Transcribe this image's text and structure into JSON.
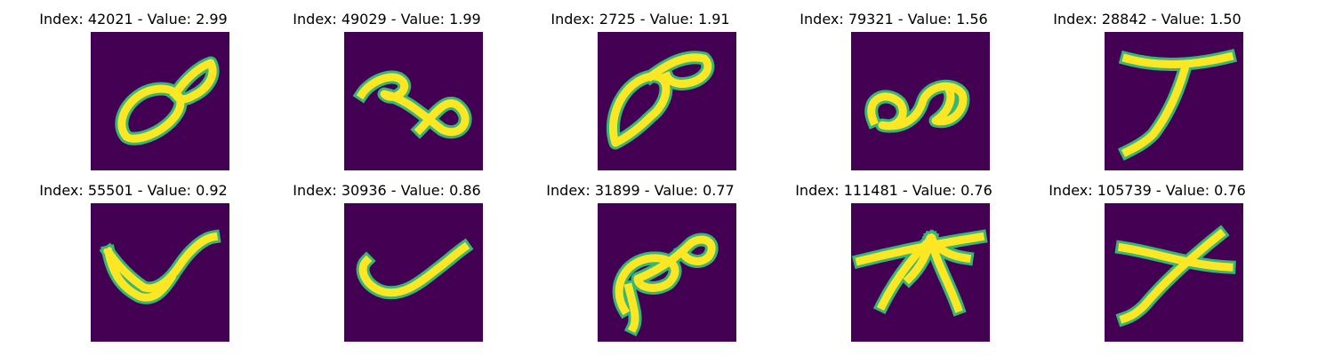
{
  "panels": [
    {
      "title": "Index: 42021 - Value: 2.99",
      "glyph": "loop-eight"
    },
    {
      "title": "Index: 49029 - Value: 1.99",
      "glyph": "swirl"
    },
    {
      "title": "Index: 2725 - Value: 1.91",
      "glyph": "leaf-loop"
    },
    {
      "title": "Index: 79321 - Value: 1.56",
      "glyph": "double-loop"
    },
    {
      "title": "Index: 28842 - Value: 1.50",
      "glyph": "y-shape"
    },
    {
      "title": "Index: 55501 - Value: 0.92",
      "glyph": "blob-u"
    },
    {
      "title": "Index: 30936 - Value: 0.86",
      "glyph": "check"
    },
    {
      "title": "Index: 31899 - Value: 0.77",
      "glyph": "loop-eight-2"
    },
    {
      "title": "Index: 111481 - Value: 0.76",
      "glyph": "star-branches"
    },
    {
      "title": "Index: 105739 - Value: 0.76",
      "glyph": "x-shape"
    }
  ],
  "colors": {
    "background": "#440154",
    "stroke": "#fde725",
    "edge": "#35b779"
  }
}
